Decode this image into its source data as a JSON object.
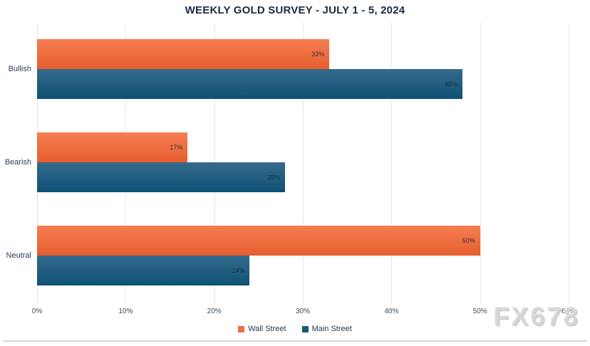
{
  "title": "WEEKLY GOLD SURVEY - JULY 1 - 5, 2024",
  "watermark": "FX678",
  "colors": {
    "wall_street_bar_top": "#F57E52",
    "wall_street_bar_bottom": "#E65E2E",
    "main_street_bar_top": "#356B8D",
    "main_street_bar_bottom": "#0E5175",
    "wall_street_legend": "#E8704A",
    "main_street_legend": "#1B5A78",
    "title_text": "#1A2B45",
    "gridline": "#E4E7EA",
    "bottom_rule": "#CBDAE2",
    "watermark_text": "#D7D7D7"
  },
  "chart_data": {
    "type": "bar",
    "orientation": "horizontal",
    "title": "WEEKLY GOLD SURVEY - JULY 1 - 5, 2024",
    "categories": [
      "Bullish",
      "Bearish",
      "Neutral"
    ],
    "series": [
      {
        "name": "Wall Street",
        "key": "wall-street",
        "values": [
          33,
          17,
          50
        ],
        "value_labels": [
          "33%",
          "17%",
          "50%"
        ]
      },
      {
        "name": "Main Street",
        "key": "main-street",
        "values": [
          48,
          28,
          24
        ],
        "value_labels": [
          "48%",
          "28%",
          "24%"
        ]
      }
    ],
    "x_ticks": [
      "0%",
      "10%",
      "20%",
      "30%",
      "40%",
      "50%",
      "60%"
    ],
    "xlim": [
      0,
      60
    ],
    "xlabel": "",
    "ylabel": "",
    "grid": "vertical-gridlines",
    "legend_position": "bottom-center",
    "value_label_position": "inside-right"
  }
}
